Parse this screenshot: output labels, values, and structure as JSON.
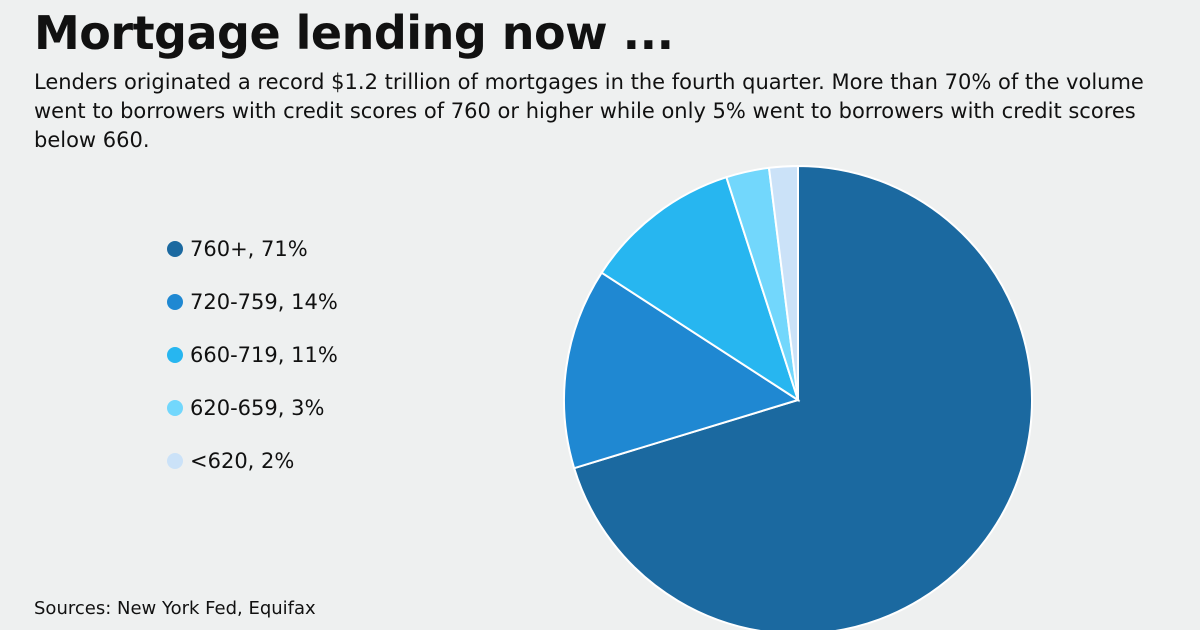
{
  "chart_data": {
    "type": "pie",
    "title": "Mortgage lending now ...",
    "subtitle": "Lenders originated a record $1.2 trillion of mortgages in the fourth quarter. More than 70% of the volume went to borrowers with credit scores of 760 or higher while only 5% went to borrowers with credit scores below 660.",
    "source": "Sources: New York Fed, Equifax",
    "categories": [
      "760+, 71%",
      "720-759, 14%",
      "660-719, 11%",
      "620-659, 3%",
      "<620, 2%"
    ],
    "values": [
      71,
      14,
      11,
      3,
      2
    ],
    "colors": [
      "#1b69a0",
      "#1f88d2",
      "#27b6f0",
      "#72d7fc",
      "#cbe2f8"
    ]
  }
}
